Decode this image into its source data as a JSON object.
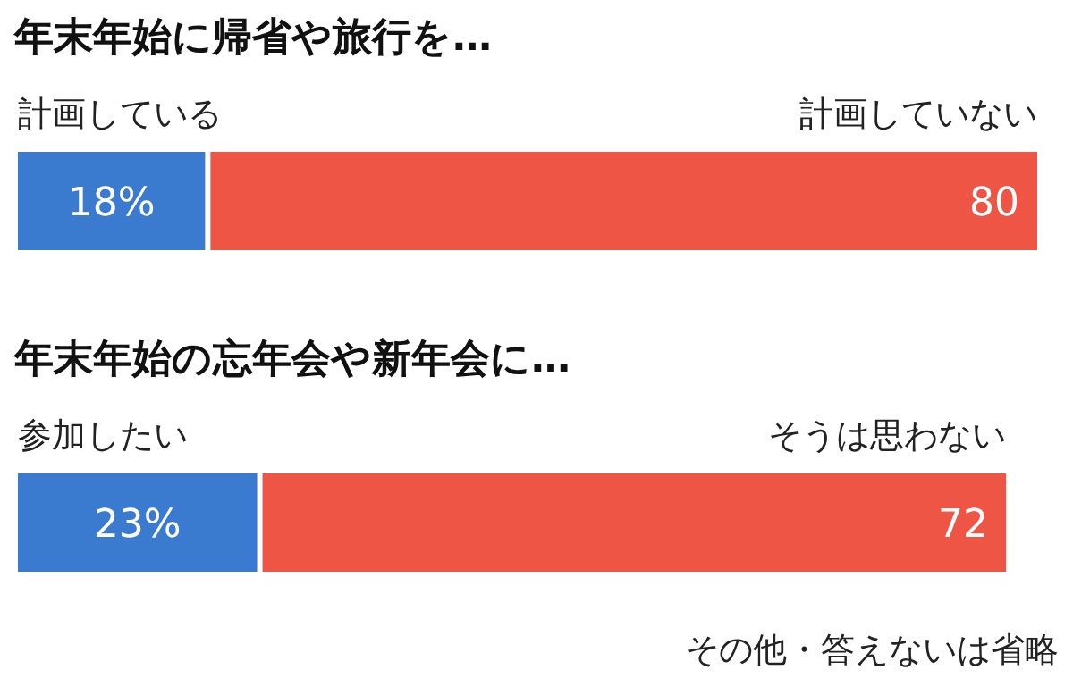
{
  "chart_data": [
    {
      "type": "bar",
      "orientation": "horizontal",
      "stacked": true,
      "title": "年末年始に帰省や旅行を…",
      "categories": [
        null
      ],
      "series": [
        {
          "name": "計画している",
          "color": "#3a7bd0",
          "values": [
            18
          ],
          "value_labels": [
            "18%"
          ]
        },
        {
          "name": "計画していない",
          "color": "#ef5545",
          "values": [
            80
          ],
          "value_labels": [
            "80"
          ]
        }
      ]
    },
    {
      "type": "bar",
      "orientation": "horizontal",
      "stacked": true,
      "title": "年末年始の忘年会や新年会に…",
      "categories": [
        null
      ],
      "series": [
        {
          "name": "参加したい",
          "color": "#3a7bd0",
          "values": [
            23
          ],
          "value_labels": [
            "23%"
          ]
        },
        {
          "name": "そうは思わない",
          "color": "#ef5545",
          "values": [
            72
          ],
          "value_labels": [
            "72"
          ]
        }
      ],
      "annotations": [
        "その他・答えないは省略"
      ]
    }
  ]
}
